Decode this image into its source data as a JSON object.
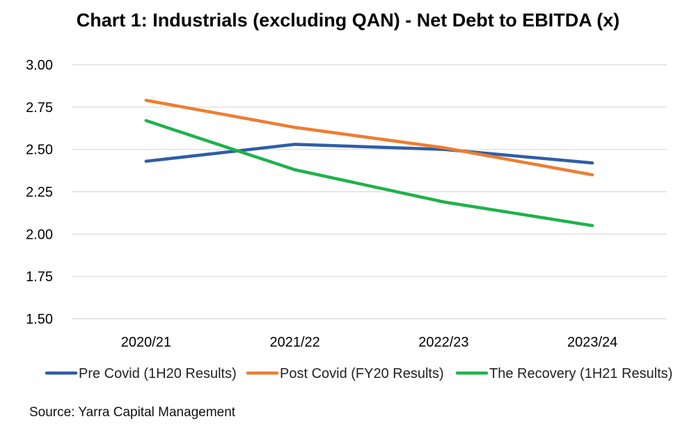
{
  "chart_data": {
    "type": "line",
    "title": "Chart 1: Industrials (excluding QAN) - Net Debt to EBITDA (x)",
    "xlabel": "",
    "ylabel": "",
    "categories": [
      "2020/21",
      "2021/22",
      "2022/23",
      "2023/24"
    ],
    "ylim": [
      1.5,
      3.0
    ],
    "yticks": [
      3.0,
      2.75,
      2.5,
      2.25,
      2.0,
      1.75,
      1.5
    ],
    "ytick_labels": [
      "3.00",
      "2.75",
      "2.50",
      "2.25",
      "2.00",
      "1.75",
      "1.50"
    ],
    "grid": true,
    "legend_position": "bottom",
    "series": [
      {
        "name": "Pre Covid (1H20 Results)",
        "color": "#2e5ea8",
        "values": [
          2.43,
          2.53,
          2.5,
          2.42
        ]
      },
      {
        "name": "Post Covid (FY20 Results)",
        "color": "#ee7d31",
        "values": [
          2.79,
          2.63,
          2.51,
          2.35
        ]
      },
      {
        "name": "The Recovery (1H21 Results)",
        "color": "#1fb24a",
        "values": [
          2.67,
          2.38,
          2.19,
          2.05
        ]
      }
    ]
  },
  "source": "Source: Yarra Capital Management"
}
